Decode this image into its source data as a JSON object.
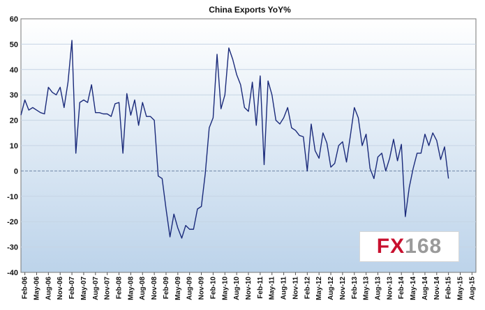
{
  "chart_data": {
    "type": "line",
    "title": "China Exports YoY%",
    "xlabel": "",
    "ylabel": "",
    "ylim": [
      -40,
      60
    ],
    "yticks": [
      -40,
      -30,
      -20,
      -10,
      0,
      10,
      20,
      30,
      40,
      50,
      60
    ],
    "x_tick_labels": [
      "Feb-06",
      "May-06",
      "Aug-06",
      "Nov-06",
      "Feb-07",
      "May-07",
      "Aug-07",
      "Nov-07",
      "Feb-08",
      "May-08",
      "Aug-08",
      "Nov-08",
      "Feb-09",
      "May-09",
      "Aug-09",
      "Nov-09",
      "Feb-10",
      "May-10",
      "Aug-10",
      "Nov-10",
      "Feb-11",
      "May-11",
      "Aug-11",
      "Nov-11",
      "Feb-12",
      "May-12",
      "Aug-12",
      "Nov-12",
      "Feb-13",
      "May-13",
      "Aug-13",
      "Nov-13",
      "Feb-14",
      "May-14",
      "Aug-14",
      "Nov-14",
      "Feb-15",
      "May-15",
      "Aug-15"
    ],
    "grid": true,
    "legend": "none",
    "series_color": "#1a2a7a",
    "start_month": "2006-01",
    "series": [
      {
        "values": [
          22,
          28,
          24,
          25,
          24,
          23,
          22.5,
          33,
          31,
          30,
          33,
          25,
          35,
          51.5,
          7,
          27,
          28,
          27,
          34,
          23,
          23,
          22.5,
          22.5,
          21.5,
          26.5,
          27,
          7,
          30.5,
          22,
          28,
          18,
          27,
          21.5,
          21.5,
          20,
          -2,
          -3,
          -15,
          -26,
          -17,
          -22.5,
          -26.5,
          -21.5,
          -23,
          -23,
          -15,
          -14,
          -1,
          17,
          21,
          46,
          24.5,
          30,
          48.5,
          44,
          38,
          34,
          25,
          23.5,
          35,
          18,
          37.5,
          2.5,
          35.5,
          30,
          20,
          18.5,
          21,
          25,
          17,
          16,
          14,
          13.5,
          0,
          18.5,
          8,
          5,
          15,
          11,
          1.5,
          3,
          10,
          11.5,
          3.5,
          14,
          25,
          21,
          10,
          14.5,
          1,
          -3,
          5.5,
          7,
          0,
          5,
          12.5,
          4,
          10.5,
          -18,
          -6.5,
          1,
          7,
          7,
          14.5,
          10,
          15,
          12,
          4.5,
          9.5,
          -3
        ]
      }
    ]
  },
  "watermark": {
    "fx": "FX",
    "num": "168",
    "fx_color": "#c8102e",
    "num_color": "#9a9a9a"
  }
}
